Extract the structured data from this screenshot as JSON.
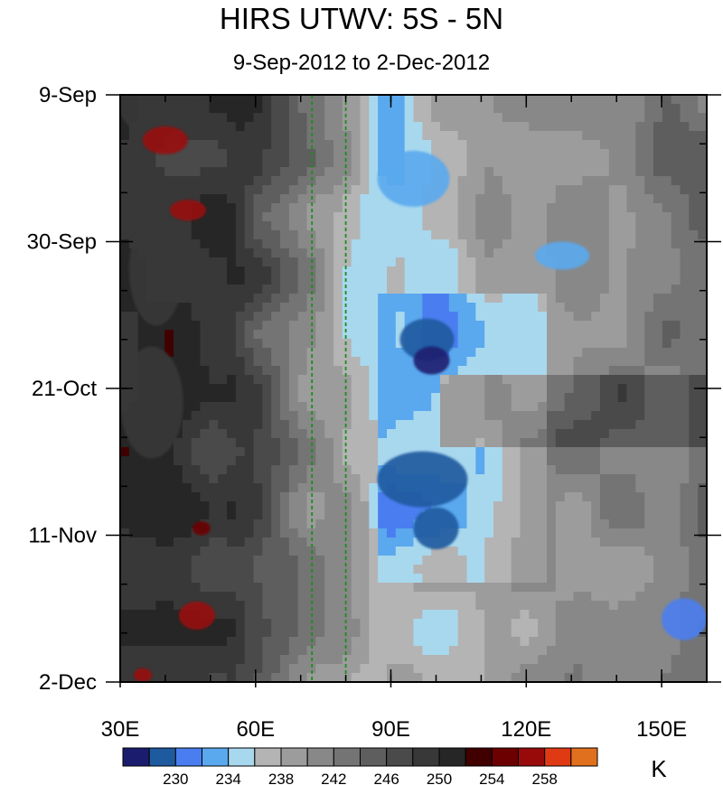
{
  "chart_data": {
    "type": "heatmap",
    "title": "HIRS UTWV: 5S - 5N",
    "subtitle": "9-Sep-2012 to 2-Dec-2012",
    "x_axis": {
      "label": "",
      "range": [
        30,
        160
      ],
      "ticks": [
        {
          "value": 30,
          "label": "30E"
        },
        {
          "value": 60,
          "label": "60E"
        },
        {
          "value": 90,
          "label": "90E"
        },
        {
          "value": 120,
          "label": "120E"
        },
        {
          "value": 150,
          "label": "150E"
        }
      ],
      "minor_tick_step": 10
    },
    "y_axis": {
      "label": "",
      "range_days": [
        0,
        84
      ],
      "direction": "top-to-bottom",
      "ticks": [
        {
          "value": 0,
          "label": "9-Sep"
        },
        {
          "value": 21,
          "label": "30-Sep"
        },
        {
          "value": 42,
          "label": "21-Oct"
        },
        {
          "value": 63,
          "label": "11-Nov"
        },
        {
          "value": 84,
          "label": "2-Dec"
        }
      ],
      "minor_tick_step": 7
    },
    "reference_lines": [
      {
        "x": 72.5,
        "style": "dashed",
        "color": "#1e8c1e"
      },
      {
        "x": 80,
        "style": "dashed",
        "color": "#1e8c1e"
      }
    ],
    "colorbar": {
      "unit": "K",
      "labels": [
        "230",
        "234",
        "238",
        "242",
        "246",
        "250",
        "254",
        "258"
      ],
      "label_boundary_index": [
        2,
        4,
        6,
        8,
        10,
        12,
        14,
        16
      ],
      "colors": [
        "#1c1c6e",
        "#1e5a9e",
        "#4a7ef0",
        "#5aa8ee",
        "#a8d8ee",
        "#b4b4b4",
        "#9c9c9c",
        "#888888",
        "#747474",
        "#5e5e5e",
        "#4a4a4a",
        "#383838",
        "#262626",
        "#400000",
        "#6c0000",
        "#980a0a",
        "#e03a14",
        "#e0701e"
      ]
    },
    "features": [
      {
        "lon": 38,
        "day": 0,
        "radius_lon": 9,
        "radius_day": 6,
        "level": 11
      },
      {
        "lon": 40,
        "day": 6.5,
        "radius_lon": 5,
        "radius_day": 2,
        "level": 15
      },
      {
        "lon": 45,
        "day": 16.5,
        "radius_lon": 4,
        "radius_day": 1.5,
        "level": 15
      },
      {
        "lon": 38,
        "day": 25,
        "radius_lon": 6,
        "radius_day": 8,
        "level": 11
      },
      {
        "lon": 37,
        "day": 44,
        "radius_lon": 7,
        "radius_day": 8,
        "level": 11
      },
      {
        "lon": 48,
        "day": 62,
        "radius_lon": 2,
        "radius_day": 1,
        "level": 14
      },
      {
        "lon": 47,
        "day": 74.5,
        "radius_lon": 4,
        "radius_day": 2,
        "level": 15
      },
      {
        "lon": 35,
        "day": 83,
        "radius_lon": 2,
        "radius_day": 1,
        "level": 15
      },
      {
        "lon": 95,
        "day": 12,
        "radius_lon": 8,
        "radius_day": 4,
        "level": 3
      },
      {
        "lon": 98,
        "day": 35,
        "radius_lon": 6,
        "radius_day": 3,
        "level": 1
      },
      {
        "lon": 99,
        "day": 38,
        "radius_lon": 4,
        "radius_day": 2,
        "level": 0
      },
      {
        "lon": 97,
        "day": 55,
        "radius_lon": 10,
        "radius_day": 4,
        "level": 1
      },
      {
        "lon": 100,
        "day": 62,
        "radius_lon": 5,
        "radius_day": 3,
        "level": 1
      },
      {
        "lon": 128,
        "day": 23,
        "radius_lon": 6,
        "radius_day": 2,
        "level": 3
      },
      {
        "lon": 155,
        "day": 75,
        "radius_lon": 5,
        "radius_day": 3,
        "level": 2
      }
    ]
  }
}
